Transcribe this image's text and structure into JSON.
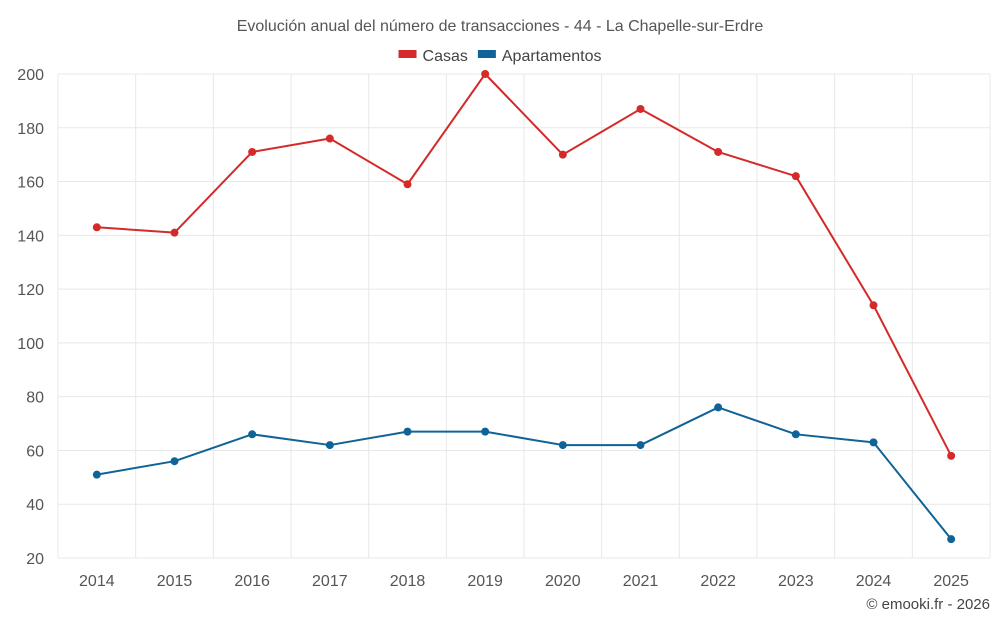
{
  "chart_data": {
    "type": "line",
    "title": "Evolución anual del número de transacciones - 44 - La Chapelle-sur-Erdre",
    "categories": [
      "2014",
      "2015",
      "2016",
      "2017",
      "2018",
      "2019",
      "2020",
      "2021",
      "2022",
      "2023",
      "2024",
      "2025"
    ],
    "series": [
      {
        "name": "Casas",
        "color": "#d42a2a",
        "values": [
          143,
          141,
          171,
          176,
          159,
          200,
          170,
          187,
          171,
          162,
          114,
          58
        ]
      },
      {
        "name": "Apartamentos",
        "color": "#0f6396",
        "values": [
          51,
          56,
          66,
          62,
          67,
          67,
          62,
          62,
          76,
          66,
          63,
          27
        ]
      }
    ],
    "ylim": [
      20,
      200
    ],
    "yticks": [
      20,
      40,
      60,
      80,
      100,
      120,
      140,
      160,
      180,
      200
    ],
    "grid": true,
    "legend": "top-center",
    "xlabel": "",
    "ylabel": ""
  },
  "credit": "© emooki.fr - 2026"
}
